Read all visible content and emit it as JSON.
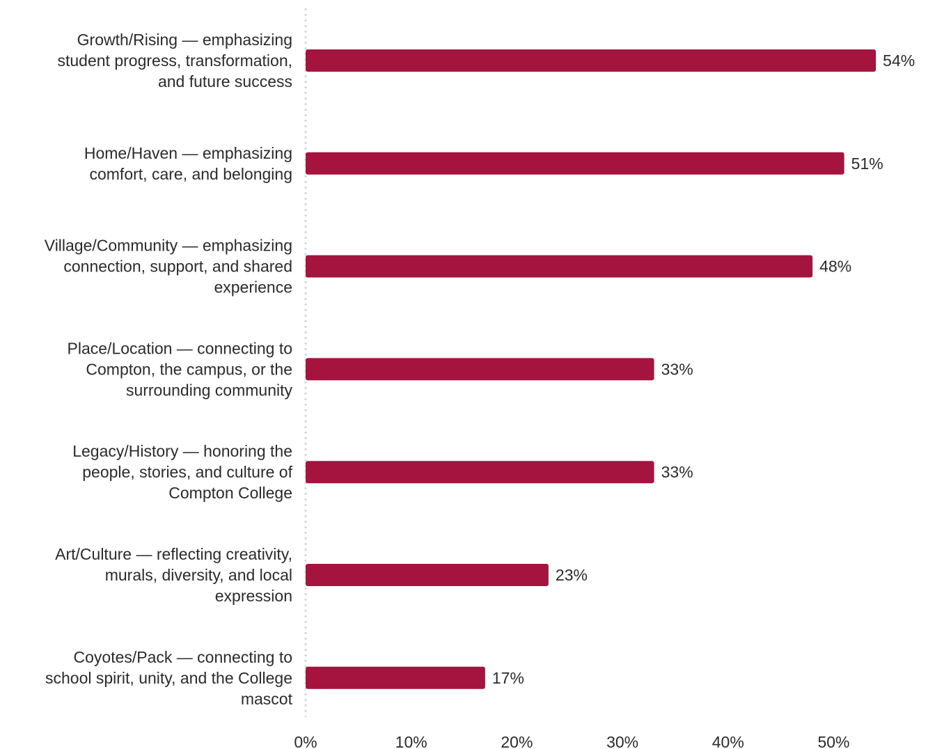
{
  "chart_data": {
    "type": "bar",
    "orientation": "horizontal",
    "categories": [
      [
        "Growth/Rising — emphasizing",
        "student progress, transformation,",
        "and future success"
      ],
      [
        "Home/Haven — emphasizing",
        "comfort, care, and belonging"
      ],
      [
        "Village/Community — emphasizing",
        "connection, support, and shared",
        "experience"
      ],
      [
        "Place/Location — connecting to",
        "Compton, the campus, or the",
        "surrounding community"
      ],
      [
        "Legacy/History — honoring the",
        "people, stories, and culture of",
        "Compton College"
      ],
      [
        "Art/Culture — reflecting creativity,",
        "murals, diversity, and local",
        "expression"
      ],
      [
        "Coyotes/Pack — connecting to",
        "school spirit, unity, and the College",
        "mascot"
      ]
    ],
    "values": [
      54,
      51,
      48,
      33,
      33,
      23,
      17
    ],
    "value_labels": [
      "54%",
      "51%",
      "48%",
      "33%",
      "33%",
      "23%",
      "17%"
    ],
    "x_ticks": [
      0,
      10,
      20,
      30,
      40,
      50
    ],
    "x_tick_labels": [
      "0%",
      "10%",
      "20%",
      "30%",
      "40%",
      "50%"
    ],
    "xlim": [
      0,
      60
    ],
    "title": "",
    "xlabel": "",
    "ylabel": "",
    "grid": false,
    "legend": "none",
    "bar_color": "#a5143e",
    "axis_line_color": "#d9d9d9",
    "text_color": "#2b2b2b"
  }
}
